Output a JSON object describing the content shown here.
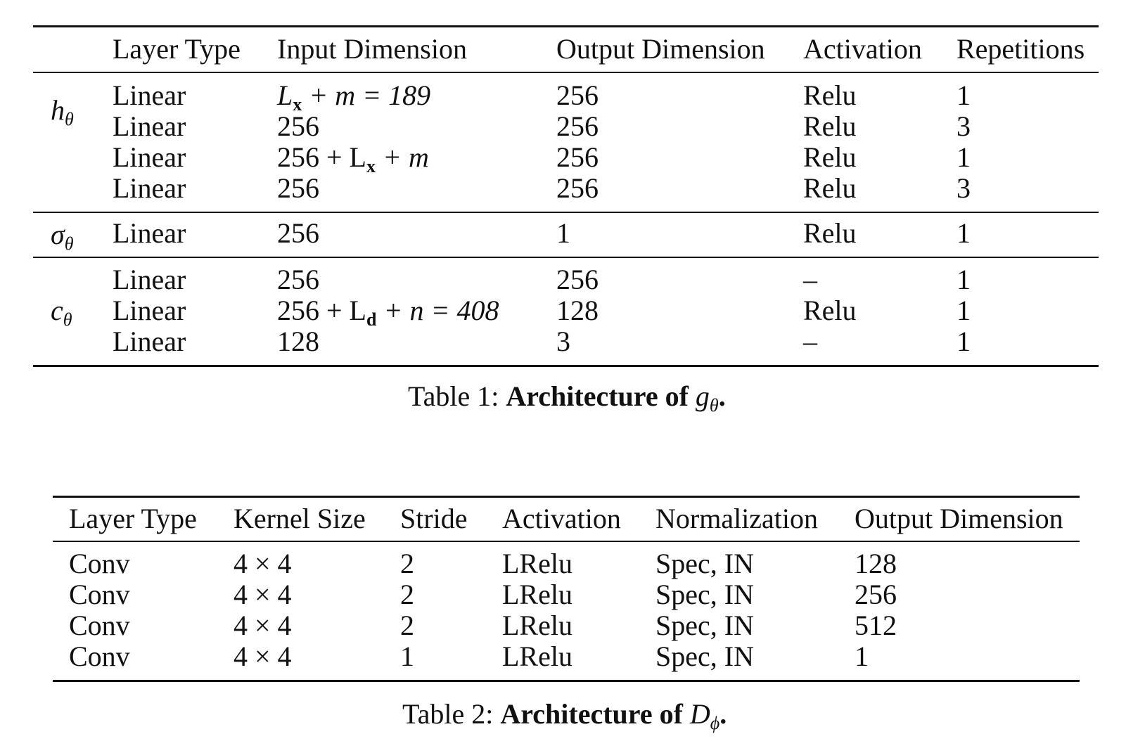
{
  "table1": {
    "headers": [
      "Layer Type",
      "Input Dimension",
      "Output Dimension",
      "Activation",
      "Repetitions"
    ],
    "groups": [
      {
        "label": "h",
        "label_sub": "θ",
        "rows": [
          {
            "layer": "Linear",
            "input": "L",
            "input_sub": "x",
            "input_tail": " + m = 189",
            "output": "256",
            "activation": "Relu",
            "repetitions": "1"
          },
          {
            "layer": "Linear",
            "input": "256",
            "output": "256",
            "activation": "Relu",
            "repetitions": "3"
          },
          {
            "layer": "Linear",
            "input": "256 + L",
            "input_sub": "x",
            "input_tail": " + m",
            "output": "256",
            "activation": "Relu",
            "repetitions": "1"
          },
          {
            "layer": "Linear",
            "input": "256",
            "output": "256",
            "activation": "Relu",
            "repetitions": "3"
          }
        ]
      },
      {
        "label": "σ",
        "label_sub": "θ",
        "rows": [
          {
            "layer": "Linear",
            "input": "256",
            "output": "1",
            "activation": "Relu",
            "repetitions": "1"
          }
        ]
      },
      {
        "label": "c",
        "label_sub": "θ",
        "rows": [
          {
            "layer": "Linear",
            "input": "256",
            "output": "256",
            "activation": "–",
            "repetitions": "1"
          },
          {
            "layer": "Linear",
            "input": "256 + L",
            "input_sub": "d",
            "input_tail": " + n = 408",
            "output": "128",
            "activation": "Relu",
            "repetitions": "1"
          },
          {
            "layer": "Linear",
            "input": "128",
            "output": "3",
            "activation": "–",
            "repetitions": "1"
          }
        ]
      }
    ],
    "caption_prefix": "Table 1: ",
    "caption_bold": "Architecture of ",
    "caption_symbol": "g",
    "caption_symbol_sub": "θ",
    "caption_end": "."
  },
  "table2": {
    "headers": [
      "Layer Type",
      "Kernel Size",
      "Stride",
      "Activation",
      "Normalization",
      "Output Dimension"
    ],
    "rows": [
      {
        "layer": "Conv",
        "kernel": "4 × 4",
        "stride": "2",
        "activation": "LRelu",
        "normalization": "Spec, IN",
        "output": "128"
      },
      {
        "layer": "Conv",
        "kernel": "4 × 4",
        "stride": "2",
        "activation": "LRelu",
        "normalization": "Spec, IN",
        "output": "256"
      },
      {
        "layer": "Conv",
        "kernel": "4 × 4",
        "stride": "2",
        "activation": "LRelu",
        "normalization": "Spec, IN",
        "output": "512"
      },
      {
        "layer": "Conv",
        "kernel": "4 × 4",
        "stride": "1",
        "activation": "LRelu",
        "normalization": "Spec, IN",
        "output": "1"
      }
    ],
    "caption_prefix": "Table 2: ",
    "caption_bold": "Architecture of ",
    "caption_symbol": "D",
    "caption_symbol_sub": "ϕ",
    "caption_end": "."
  }
}
